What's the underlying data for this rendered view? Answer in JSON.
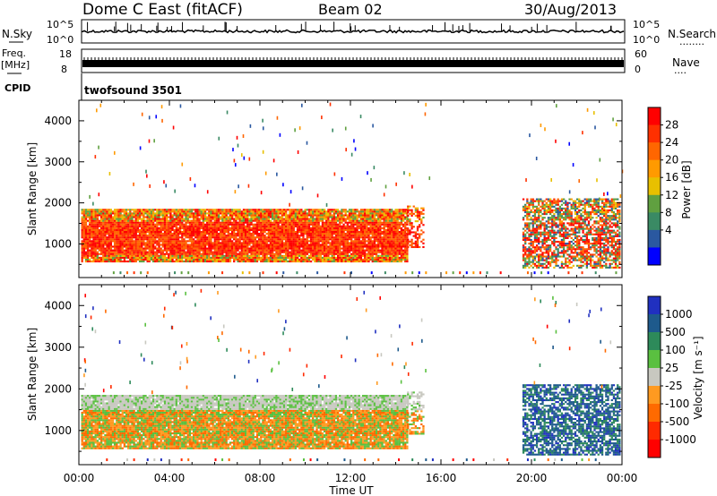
{
  "header": {
    "title": "Dome C East (fitACF)",
    "beam": "Beam 02",
    "date": "30/Aug/2013"
  },
  "left_labels": {
    "nsky": "N.Sky",
    "freq": "Freq.",
    "freq_unit": "[MHz]",
    "cpid": "CPID"
  },
  "right_labels": {
    "nsearch": "N.Search",
    "nsearch_dots": "........",
    "nave": "Nave",
    "nave_dots": "...."
  },
  "noise_panel": {
    "left_ticks": [
      "10^5",
      "10^0"
    ],
    "right_ticks": [
      "10^5",
      "10^0"
    ]
  },
  "freq_panel": {
    "left_ticks": [
      "18",
      "8"
    ],
    "right_ticks": [
      "60",
      "0"
    ]
  },
  "cpid_text": "twofsound 3501",
  "chart_data": [
    {
      "type": "heatmap",
      "name": "power",
      "ylabel": "Slant Range [km]",
      "y_ticks": [
        1000,
        2000,
        3000,
        4000
      ],
      "ylim": [
        180,
        4500
      ],
      "x_ticks": [
        "00:00",
        "04:00",
        "08:00",
        "12:00",
        "16:00",
        "20:00",
        "00:00"
      ],
      "xlim_hours": [
        0,
        24
      ],
      "colorbar": {
        "label": "Power [dB]",
        "ticks": [
          "28",
          "24",
          "20",
          "16",
          "12",
          "8",
          "4"
        ],
        "colors": [
          "#ff0000",
          "#ff3000",
          "#ff6600",
          "#ff9a00",
          "#e8c000",
          "#60a040",
          "#3a8a64",
          "#2a58a0",
          "#0000ff"
        ],
        "range": [
          0,
          32
        ]
      }
    },
    {
      "type": "heatmap",
      "name": "velocity",
      "ylabel": "Slant Range [km]",
      "y_ticks": [
        1000,
        2000,
        3000,
        4000
      ],
      "ylim": [
        180,
        4500
      ],
      "x_ticks": [
        "00:00",
        "04:00",
        "08:00",
        "12:00",
        "16:00",
        "20:00",
        "00:00"
      ],
      "xlabel": "Time UT",
      "xlim_hours": [
        0,
        24
      ],
      "colorbar": {
        "label": "Velocity [m s⁻¹]",
        "ticks": [
          "1000",
          "500",
          "100",
          "25",
          "-25",
          "-100",
          "-500",
          "-1000"
        ],
        "colors": [
          "#2030c0",
          "#1e5a8c",
          "#2d8a5a",
          "#5ac040",
          "#c8c8c0",
          "#ff9a20",
          "#ff6a00",
          "#ff2a00",
          "#ff0000"
        ],
        "range": [
          -1000,
          1000
        ]
      }
    }
  ]
}
